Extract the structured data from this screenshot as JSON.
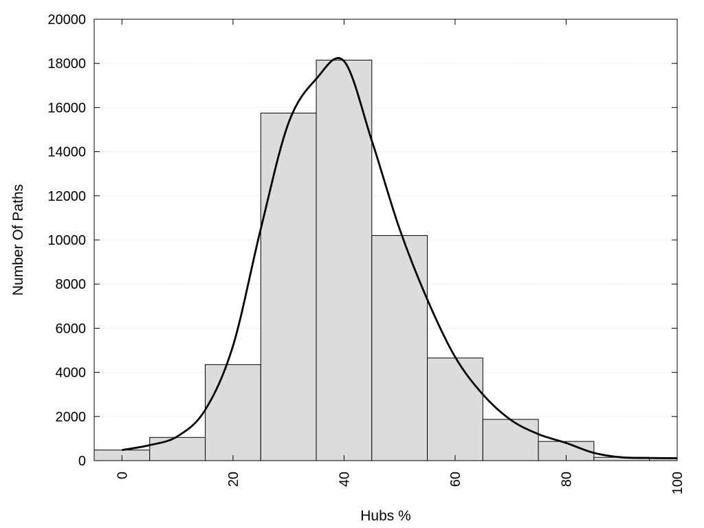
{
  "chart_data": {
    "type": "bar",
    "title": "",
    "xlabel": "Hubs %",
    "ylabel": "Number Of Paths",
    "xlim": [
      -5,
      100
    ],
    "ylim": [
      0,
      20000
    ],
    "grid": "horizontal dotted",
    "x_ticks": [
      0,
      20,
      40,
      60,
      80,
      100
    ],
    "y_ticks": [
      0,
      2000,
      4000,
      6000,
      8000,
      10000,
      12000,
      14000,
      16000,
      18000,
      20000
    ],
    "bin_width": 10,
    "categories": [
      0,
      10,
      20,
      30,
      40,
      50,
      60,
      70,
      80,
      90,
      100
    ],
    "values": [
      480,
      1050,
      4350,
      15750,
      18150,
      10200,
      4650,
      1870,
      870,
      150,
      110
    ],
    "bar_color": "#dcdcdc",
    "curve": {
      "type": "line",
      "color": "#000000",
      "x": [
        0,
        5,
        10,
        15,
        20,
        25,
        30,
        35,
        40,
        45,
        50,
        55,
        60,
        65,
        70,
        75,
        80,
        85,
        90,
        95,
        100
      ],
      "y": [
        480,
        700,
        1100,
        2300,
        5200,
        10500,
        15300,
        17300,
        18100,
        14500,
        10500,
        7300,
        4700,
        3000,
        1850,
        1200,
        800,
        350,
        150,
        120,
        110
      ]
    }
  }
}
